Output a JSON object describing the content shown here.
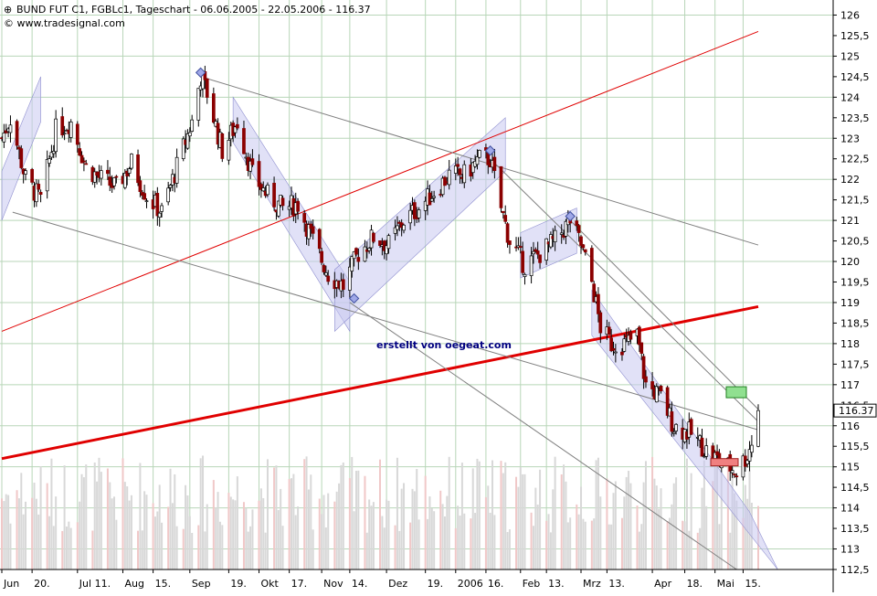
{
  "header": {
    "title": "BUND FUT C1, FGBLc1, Tageschart - 06.06.2005 - 22.05.2006 - 116.37",
    "copyright": "© www.tradesignal.com"
  },
  "annotation": "erstellt von oegeat.com",
  "last_price_label": "116.37",
  "colors": {
    "background": "#ffffff",
    "grid": "#b8d6b8",
    "channel_fill": "#c8c8f0",
    "trend_red": "#e00000",
    "candle_up": "#ffffff",
    "candle_down": "#8b0000",
    "volume": "#d8d8d8",
    "volume_red": "#f0c8c8",
    "text_blue": "#000080"
  },
  "chart_data": {
    "type": "candlestick",
    "y_ticks": [
      "126",
      "125,5",
      "125",
      "124,5",
      "124",
      "123,5",
      "123",
      "122,5",
      "122",
      "121,5",
      "121",
      "120,5",
      "120",
      "119,5",
      "119",
      "118,5",
      "118",
      "117,5",
      "117",
      "116,5",
      "116",
      "115,5",
      "115",
      "114,5",
      "114",
      "113,5",
      "113",
      "112,5"
    ],
    "ylim": [
      112.5,
      126.3
    ],
    "x_ticks": [
      "Jun",
      "20.",
      "Jul 11.",
      "Aug",
      "15.",
      "Sep",
      "19.",
      "Okt",
      "17.",
      "Nov",
      "14.",
      "Dez",
      "19.",
      "2006",
      "16.",
      "Feb",
      "13.",
      "Mrz",
      "13.",
      "Apr",
      "18.",
      "Mai",
      "15."
    ],
    "x_tick_dates": [
      "2005-06-06",
      "2005-06-20",
      "2005-07-11",
      "2005-08-01",
      "2005-08-15",
      "2005-09-01",
      "2005-09-19",
      "2005-10-03",
      "2005-10-17",
      "2005-11-01",
      "2005-11-14",
      "2005-12-01",
      "2005-12-19",
      "2006-01-02",
      "2006-01-16",
      "2006-02-01",
      "2006-02-13",
      "2006-03-01",
      "2006-03-13",
      "2006-04-03",
      "2006-04-18",
      "2006-05-02",
      "2006-05-15"
    ],
    "close_keypoints": [
      [
        "2005-06-06",
        123.0
      ],
      [
        "2005-06-10",
        123.5
      ],
      [
        "2005-06-17",
        122.0
      ],
      [
        "2005-06-24",
        121.5
      ],
      [
        "2005-07-01",
        123.2
      ],
      [
        "2005-07-08",
        123.4
      ],
      [
        "2005-07-15",
        122.3
      ],
      [
        "2005-07-22",
        122.0
      ],
      [
        "2005-07-29",
        121.8
      ],
      [
        "2005-08-05",
        122.4
      ],
      [
        "2005-08-12",
        121.6
      ],
      [
        "2005-08-19",
        121.2
      ],
      [
        "2005-08-26",
        122.3
      ],
      [
        "2005-09-02",
        123.4
      ],
      [
        "2005-09-06",
        124.5
      ],
      [
        "2005-09-09",
        124.1
      ],
      [
        "2005-09-16",
        122.7
      ],
      [
        "2005-09-23",
        123.4
      ],
      [
        "2005-09-30",
        122.1
      ],
      [
        "2005-10-07",
        121.6
      ],
      [
        "2005-10-14",
        121.3
      ],
      [
        "2005-10-21",
        121.4
      ],
      [
        "2005-10-28",
        120.5
      ],
      [
        "2005-11-04",
        119.7
      ],
      [
        "2005-11-11",
        119.4
      ],
      [
        "2005-11-18",
        120.2
      ],
      [
        "2005-11-25",
        120.6
      ],
      [
        "2005-12-02",
        120.4
      ],
      [
        "2005-12-09",
        121.0
      ],
      [
        "2005-12-16",
        121.3
      ],
      [
        "2005-12-23",
        121.7
      ],
      [
        "2005-12-30",
        122.1
      ],
      [
        "2006-01-06",
        122.1
      ],
      [
        "2006-01-13",
        122.5
      ],
      [
        "2006-01-18",
        122.5
      ],
      [
        "2006-01-23",
        121.3
      ],
      [
        "2006-01-27",
        120.5
      ],
      [
        "2006-02-03",
        119.9
      ],
      [
        "2006-02-10",
        120.2
      ],
      [
        "2006-02-17",
        120.5
      ],
      [
        "2006-02-24",
        121.0
      ],
      [
        "2006-03-01",
        120.4
      ],
      [
        "2006-03-06",
        119.5
      ],
      [
        "2006-03-10",
        118.4
      ],
      [
        "2006-03-15",
        118.0
      ],
      [
        "2006-03-22",
        118.0
      ],
      [
        "2006-03-27",
        118.2
      ],
      [
        "2006-03-31",
        117.0
      ],
      [
        "2006-04-07",
        116.7
      ],
      [
        "2006-04-13",
        116.0
      ],
      [
        "2006-04-21",
        115.8
      ],
      [
        "2006-04-28",
        115.4
      ],
      [
        "2006-05-05",
        115.1
      ],
      [
        "2006-05-12",
        114.9
      ],
      [
        "2006-05-17",
        115.3
      ],
      [
        "2006-05-19",
        115.6
      ],
      [
        "2006-05-22",
        116.37
      ]
    ],
    "trendlines_data_units": [
      {
        "name": "major-red-support",
        "color": "red",
        "from": [
          "2005-06-06",
          115.2
        ],
        "to": [
          "2006-05-22",
          118.9
        ]
      },
      {
        "name": "thin-red-resistance",
        "color": "red",
        "from": [
          "2005-06-06",
          118.3
        ],
        "to": [
          "2006-05-22",
          125.6
        ]
      },
      {
        "name": "gray-long-top",
        "from": [
          "2005-09-06",
          124.5
        ],
        "to": [
          "2006-05-22",
          120.4
        ]
      },
      {
        "name": "gray-from-jun-low",
        "from": [
          "2005-06-11",
          121.2
        ],
        "to": [
          "2006-05-22",
          115.9
        ]
      },
      {
        "name": "gray-from-nov-low",
        "from": [
          "2005-11-14",
          119.0
        ],
        "to": [
          "2006-05-12",
          112.5
        ]
      },
      {
        "name": "gray-from-jan-high",
        "from": [
          "2006-01-18",
          122.5
        ],
        "to": [
          "2006-05-22",
          116.1
        ]
      },
      {
        "name": "gray-from-feb-high",
        "from": [
          "2006-02-24",
          121.0
        ],
        "to": [
          "2006-05-22",
          116.4
        ]
      }
    ]
  }
}
